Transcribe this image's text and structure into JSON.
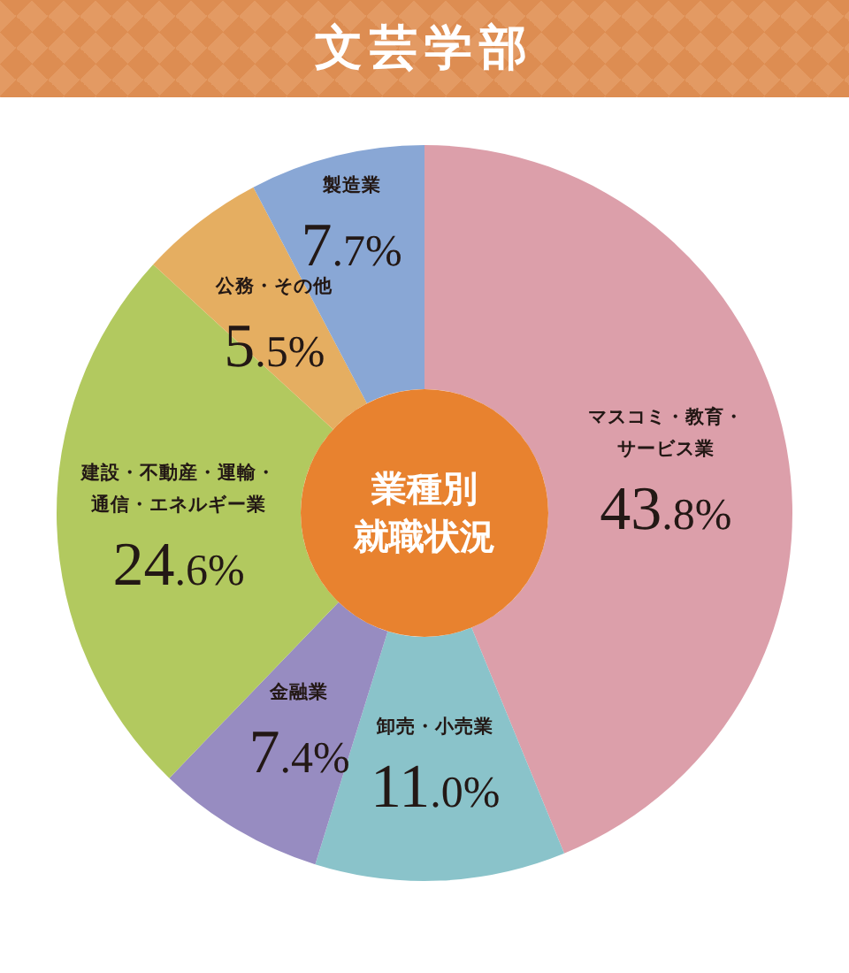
{
  "chart_data": {
    "type": "donut",
    "title": "文芸学部",
    "categories": [
      "マスコミ・教育・サービス業",
      "卸売・小売業",
      "金融業",
      "建設・不動産・運輸・通信・エネルギー業",
      "公務・その他",
      "製造業"
    ],
    "values": [
      43.8,
      11.0,
      7.4,
      24.6,
      5.5,
      7.7
    ],
    "colors": [
      "#dc9faa",
      "#8ac3ca",
      "#978cc1",
      "#b2c95f",
      "#e5ae61",
      "#89a7d5"
    ],
    "value_labels": [
      "43.8%",
      "11.0%",
      "7.4%",
      "24.6%",
      "5.5%",
      "7.7%"
    ],
    "annotations": [
      "業種別",
      "就職状況"
    ],
    "legend": false
  }
}
